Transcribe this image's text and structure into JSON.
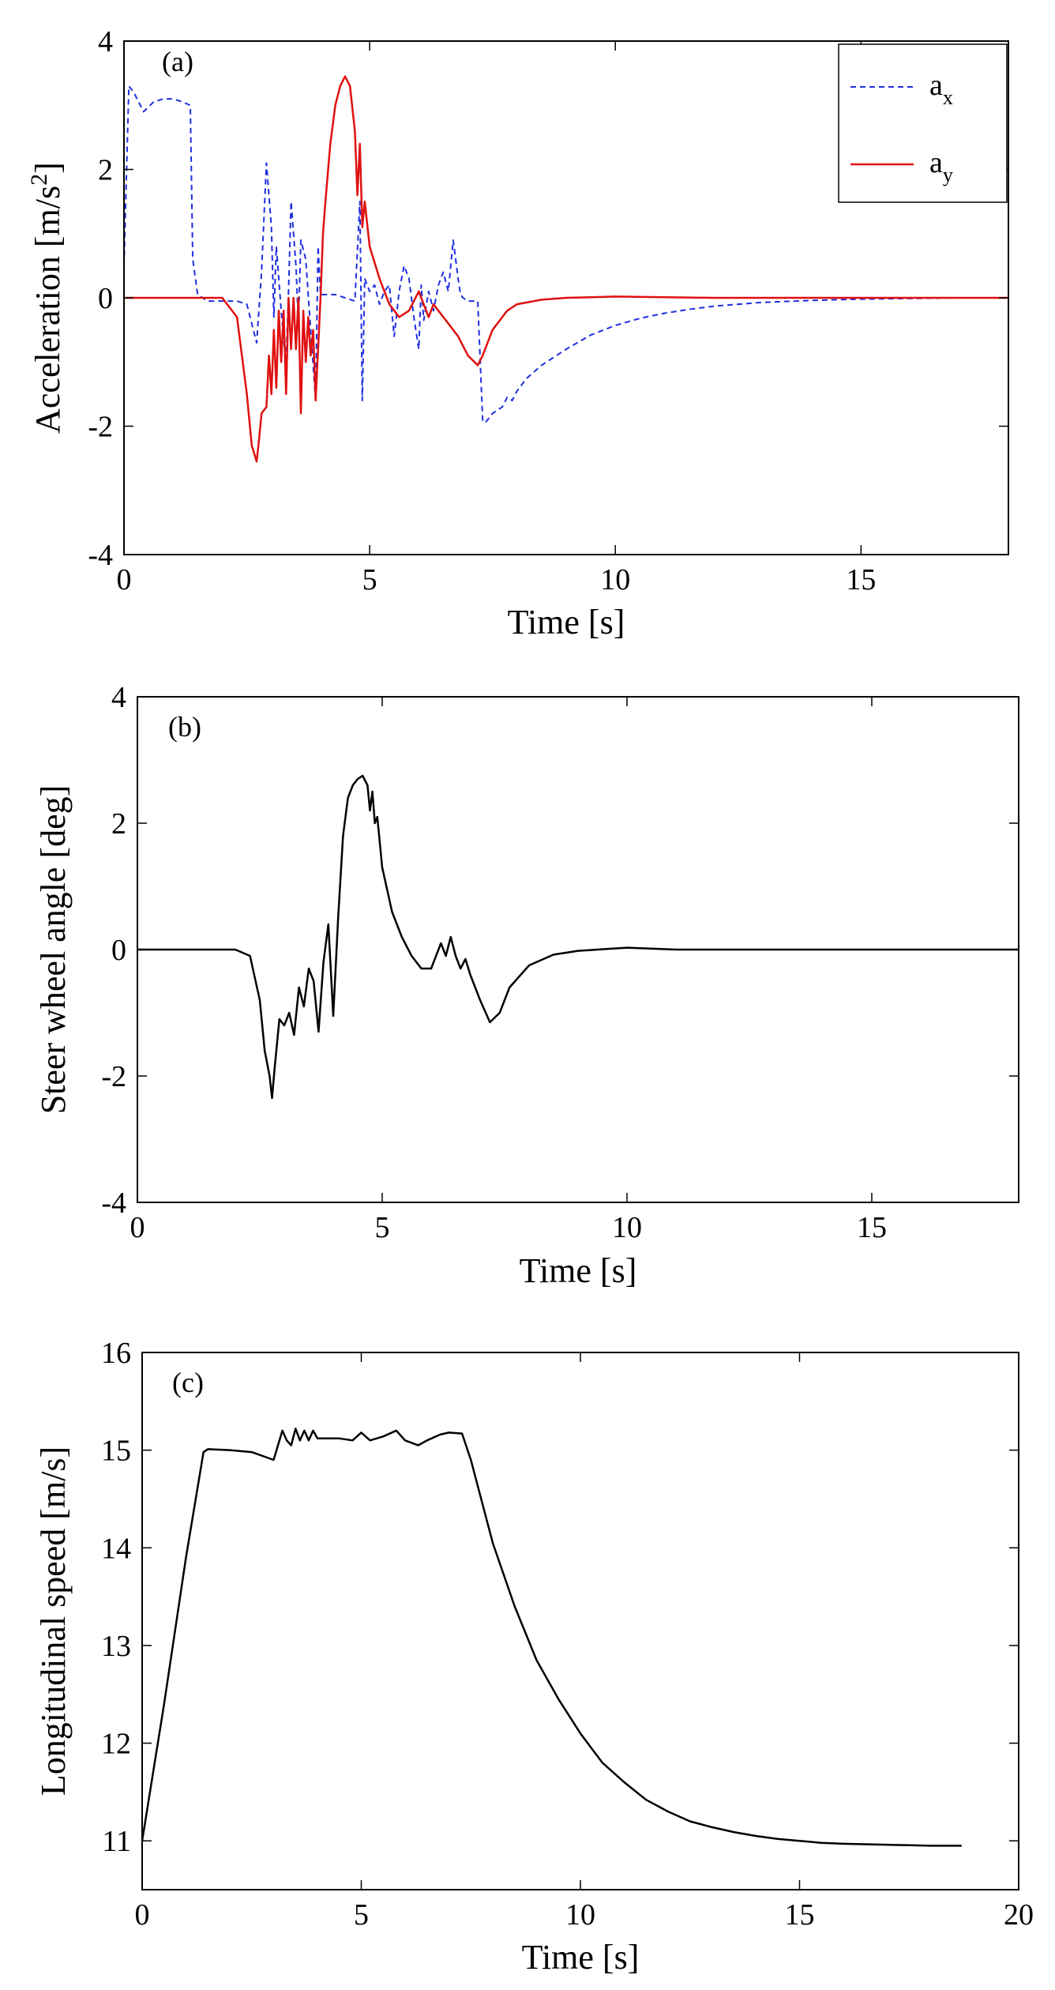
{
  "chart_data": [
    {
      "panel_label": "(a)",
      "type": "line",
      "xlabel": "Time [s]",
      "ylabel": "Acceleration [m/s²]",
      "ylabel_parts": {
        "base": "Acceleration [m/s",
        "sup": "2",
        "tail": "]"
      },
      "xlim": [
        0,
        18
      ],
      "ylim": [
        -4,
        4
      ],
      "xticks": [
        0,
        5,
        10,
        15
      ],
      "yticks": [
        -4,
        -2,
        0,
        2,
        4
      ],
      "grid": false,
      "legend": {
        "placement": "top-right",
        "entries": [
          {
            "base": "a",
            "sub": "x"
          },
          {
            "base": "a",
            "sub": "y"
          }
        ]
      },
      "series": [
        {
          "name": "a_x",
          "color": "#1f2fe0",
          "dash": "dashed",
          "x": [
            0,
            0.1,
            0.2,
            0.4,
            0.6,
            0.8,
            1.0,
            1.2,
            1.35,
            1.4,
            1.5,
            1.7,
            2.0,
            2.3,
            2.5,
            2.7,
            2.8,
            2.9,
            3.0,
            3.05,
            3.1,
            3.2,
            3.3,
            3.35,
            3.4,
            3.5,
            3.55,
            3.6,
            3.7,
            3.8,
            3.9,
            3.95,
            4.0,
            4.1,
            4.3,
            4.5,
            4.7,
            4.8,
            4.85,
            4.9,
            5.0,
            5.1,
            5.2,
            5.3,
            5.4,
            5.5,
            5.6,
            5.7,
            5.8,
            5.9,
            6.0,
            6.05,
            6.1,
            6.2,
            6.3,
            6.4,
            6.5,
            6.6,
            6.7,
            6.8,
            6.85,
            6.9,
            7.0,
            7.2,
            7.3,
            7.35,
            7.5,
            7.7,
            7.8,
            7.9,
            8.0,
            8.2,
            8.5,
            9.0,
            9.5,
            10.0,
            10.5,
            11.0,
            11.5,
            12.0,
            12.5,
            13.0,
            14.0,
            15.0,
            16.0,
            17.0,
            18.0
          ],
          "y": [
            0.5,
            3.3,
            3.2,
            2.9,
            3.05,
            3.1,
            3.1,
            3.05,
            3.0,
            0.6,
            0.05,
            -0.05,
            -0.05,
            -0.05,
            -0.1,
            -0.7,
            0.4,
            2.1,
            1.1,
            -0.3,
            0.8,
            -0.2,
            -1.05,
            0.1,
            1.5,
            0.5,
            -0.4,
            0.9,
            0.6,
            -0.5,
            -1.6,
            0.8,
            0.05,
            0.05,
            0.05,
            0.0,
            -0.05,
            1.5,
            -1.6,
            0.3,
            0.1,
            0.2,
            -0.1,
            0.1,
            0.2,
            -0.6,
            0.1,
            0.5,
            0.3,
            -0.3,
            -0.8,
            0.2,
            -0.35,
            0.1,
            -0.2,
            0.2,
            0.4,
            0.1,
            0.9,
            0.3,
            0.05,
            0.0,
            -0.05,
            -0.05,
            -1.9,
            -1.95,
            -1.8,
            -1.7,
            -1.55,
            -1.6,
            -1.45,
            -1.25,
            -1.05,
            -0.8,
            -0.58,
            -0.43,
            -0.32,
            -0.24,
            -0.18,
            -0.13,
            -0.1,
            -0.07,
            -0.04,
            -0.02,
            -0.01,
            0.0,
            0.0
          ]
        },
        {
          "name": "a_y",
          "color": "#e01010",
          "dash": "solid",
          "x": [
            0,
            1.0,
            2.0,
            2.3,
            2.5,
            2.6,
            2.7,
            2.75,
            2.8,
            2.9,
            2.95,
            3.0,
            3.05,
            3.1,
            3.15,
            3.2,
            3.25,
            3.3,
            3.35,
            3.4,
            3.45,
            3.5,
            3.55,
            3.6,
            3.65,
            3.7,
            3.75,
            3.8,
            3.85,
            3.9,
            3.95,
            4.0,
            4.05,
            4.1,
            4.2,
            4.3,
            4.4,
            4.5,
            4.6,
            4.7,
            4.75,
            4.8,
            4.85,
            4.9,
            5.0,
            5.2,
            5.4,
            5.6,
            5.8,
            6.0,
            6.2,
            6.3,
            6.4,
            6.5,
            6.6,
            6.8,
            7.0,
            7.2,
            7.3,
            7.5,
            7.8,
            8.0,
            8.5,
            9.0,
            10.0,
            12.0,
            18.0
          ],
          "y": [
            0.0,
            0.0,
            0.0,
            -0.3,
            -1.5,
            -2.3,
            -2.55,
            -2.2,
            -1.8,
            -1.7,
            -0.9,
            -1.5,
            -0.5,
            -1.4,
            -0.2,
            -1.0,
            -0.2,
            -1.5,
            0.0,
            -0.8,
            0.0,
            -0.8,
            0.0,
            -1.8,
            -0.2,
            -1.0,
            -0.3,
            -0.9,
            -0.5,
            -1.6,
            -0.8,
            0.0,
            1.0,
            1.5,
            2.4,
            3.0,
            3.3,
            3.45,
            3.3,
            2.6,
            1.6,
            2.4,
            1.1,
            1.5,
            0.8,
            0.3,
            -0.1,
            -0.3,
            -0.2,
            0.1,
            -0.3,
            -0.1,
            -0.2,
            -0.3,
            -0.4,
            -0.6,
            -0.9,
            -1.05,
            -0.9,
            -0.5,
            -0.2,
            -0.1,
            -0.03,
            0.0,
            0.02,
            0.0,
            0.0
          ]
        }
      ]
    },
    {
      "panel_label": "(b)",
      "type": "line",
      "xlabel": "Time [s]",
      "ylabel": "Steer wheel angle [deg]",
      "xlim": [
        0,
        18
      ],
      "ylim": [
        -4,
        4
      ],
      "xticks": [
        0,
        5,
        10,
        15
      ],
      "yticks": [
        -4,
        -2,
        0,
        2,
        4
      ],
      "grid": false,
      "series": [
        {
          "color": "#000000",
          "dash": "solid",
          "x": [
            0,
            1.0,
            2.0,
            2.3,
            2.5,
            2.6,
            2.7,
            2.75,
            2.8,
            2.9,
            3.0,
            3.1,
            3.2,
            3.3,
            3.4,
            3.5,
            3.6,
            3.7,
            3.8,
            3.9,
            4.0,
            4.1,
            4.2,
            4.3,
            4.4,
            4.5,
            4.6,
            4.7,
            4.75,
            4.8,
            4.85,
            4.9,
            5.0,
            5.2,
            5.4,
            5.6,
            5.8,
            6.0,
            6.2,
            6.3,
            6.4,
            6.5,
            6.6,
            6.7,
            6.8,
            7.0,
            7.2,
            7.4,
            7.6,
            8.0,
            8.5,
            9.0,
            10.0,
            11.0,
            18.0
          ],
          "y": [
            0.0,
            0.0,
            0.0,
            -0.1,
            -0.8,
            -1.6,
            -2.0,
            -2.35,
            -1.9,
            -1.1,
            -1.2,
            -1.0,
            -1.35,
            -0.6,
            -0.9,
            -0.3,
            -0.5,
            -1.3,
            -0.2,
            0.4,
            -1.05,
            0.5,
            1.8,
            2.4,
            2.6,
            2.7,
            2.75,
            2.6,
            2.2,
            2.5,
            2.0,
            2.1,
            1.3,
            0.6,
            0.2,
            -0.1,
            -0.3,
            -0.3,
            0.1,
            -0.1,
            0.2,
            -0.1,
            -0.3,
            -0.15,
            -0.4,
            -0.8,
            -1.15,
            -1.0,
            -0.6,
            -0.25,
            -0.08,
            -0.02,
            0.03,
            0.0,
            0.0
          ]
        }
      ]
    },
    {
      "panel_label": "(c)",
      "type": "line",
      "xlabel": "Time [s]",
      "ylabel": "Longitudinal speed [m/s]",
      "xlim": [
        0,
        20
      ],
      "ylim": [
        10.5,
        16
      ],
      "xticks": [
        0,
        5,
        10,
        15,
        20
      ],
      "yticks": [
        11,
        12,
        13,
        14,
        15,
        16
      ],
      "grid": false,
      "series": [
        {
          "color": "#000000",
          "dash": "solid",
          "x": [
            0,
            0.5,
            1.0,
            1.4,
            1.5,
            2.0,
            2.5,
            3.0,
            3.2,
            3.3,
            3.4,
            3.5,
            3.6,
            3.7,
            3.8,
            3.9,
            4.0,
            4.5,
            4.8,
            5.0,
            5.2,
            5.5,
            5.8,
            6.0,
            6.3,
            6.5,
            6.8,
            7.0,
            7.3,
            7.5,
            8.0,
            8.5,
            9.0,
            9.5,
            10.0,
            10.5,
            11.0,
            11.5,
            12.0,
            12.5,
            13.0,
            13.5,
            14.0,
            14.5,
            15.0,
            15.5,
            16.0,
            17.0,
            18.0,
            18.7
          ],
          "y": [
            11.0,
            12.4,
            13.9,
            14.98,
            15.01,
            15.0,
            14.98,
            14.9,
            15.2,
            15.1,
            15.05,
            15.22,
            15.1,
            15.2,
            15.1,
            15.2,
            15.12,
            15.12,
            15.1,
            15.18,
            15.1,
            15.14,
            15.2,
            15.1,
            15.05,
            15.1,
            15.16,
            15.18,
            15.17,
            14.9,
            14.05,
            13.4,
            12.85,
            12.45,
            12.1,
            11.8,
            11.6,
            11.42,
            11.3,
            11.2,
            11.14,
            11.09,
            11.05,
            11.02,
            11.0,
            10.98,
            10.97,
            10.96,
            10.95,
            10.95
          ]
        }
      ]
    }
  ]
}
